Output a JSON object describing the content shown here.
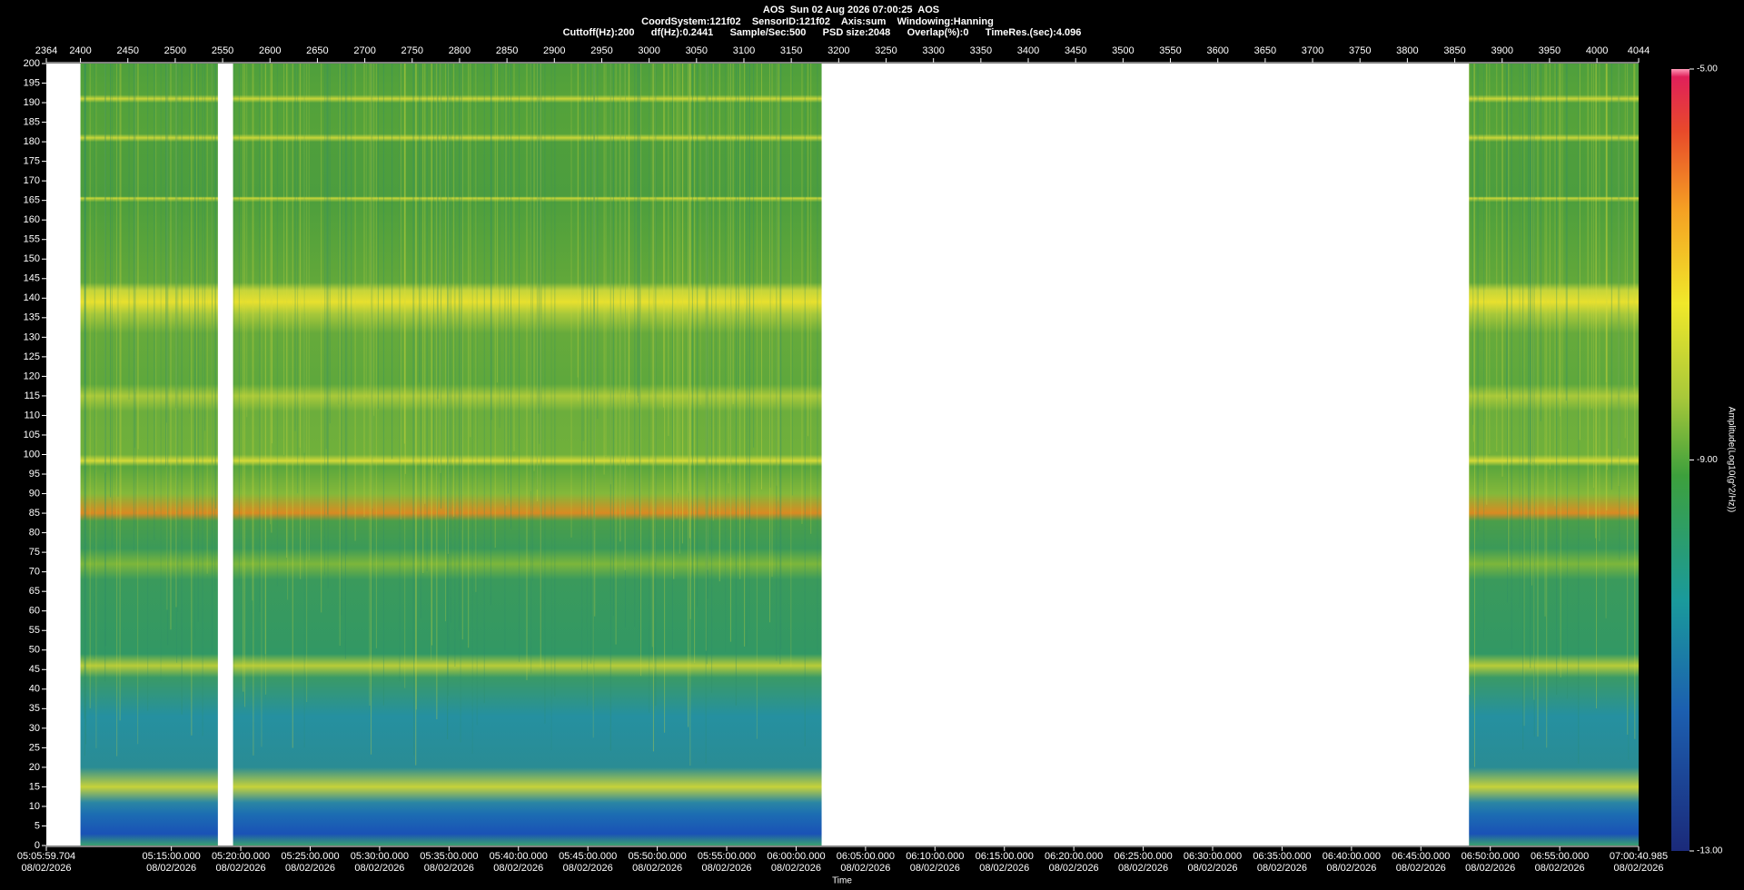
{
  "chart_data": {
    "type": "spectrogram",
    "title_lines": [
      "AOS  Sun 02 Aug 2026 07:00:25  AOS",
      "CoordSystem:121f02    SensorID:121f02    Axis:sum    Windowing:Hanning",
      "Cuttoff(Hz):200      df(Hz):0.2441      Sample/Sec:500      PSD size:2048      Overlap(%):0      TimeRes.(sec):4.096"
    ],
    "xlabel": "Time",
    "colorbar_label": "Amplitude(Log10(g^2/Hz))",
    "xlim": [
      2364,
      4044
    ],
    "xticks": [
      2364,
      2400,
      2450,
      2500,
      2550,
      2600,
      2650,
      2700,
      2750,
      2800,
      2850,
      2900,
      2950,
      3000,
      3050,
      3100,
      3150,
      3200,
      3250,
      3300,
      3350,
      3400,
      3450,
      3500,
      3550,
      3600,
      3650,
      3700,
      3750,
      3800,
      3850,
      3900,
      3950,
      4000,
      4044
    ],
    "ylim": [
      0,
      200
    ],
    "yticks": [
      0,
      5,
      10,
      15,
      20,
      25,
      30,
      35,
      40,
      45,
      50,
      55,
      60,
      65,
      70,
      75,
      80,
      85,
      90,
      95,
      100,
      105,
      110,
      115,
      120,
      125,
      130,
      135,
      140,
      145,
      150,
      155,
      160,
      165,
      170,
      175,
      180,
      185,
      190,
      195,
      200
    ],
    "time_ticks": [
      {
        "time": "05:05:59.704",
        "date": "08/02/2026"
      },
      {
        "time": "05:15:00.000",
        "date": "08/02/2026"
      },
      {
        "time": "05:20:00.000",
        "date": "08/02/2026"
      },
      {
        "time": "05:25:00.000",
        "date": "08/02/2026"
      },
      {
        "time": "05:30:00.000",
        "date": "08/02/2026"
      },
      {
        "time": "05:35:00.000",
        "date": "08/02/2026"
      },
      {
        "time": "05:40:00.000",
        "date": "08/02/2026"
      },
      {
        "time": "05:45:00.000",
        "date": "08/02/2026"
      },
      {
        "time": "05:50:00.000",
        "date": "08/02/2026"
      },
      {
        "time": "05:55:00.000",
        "date": "08/02/2026"
      },
      {
        "time": "06:00:00.000",
        "date": "08/02/2026"
      },
      {
        "time": "06:05:00.000",
        "date": "08/02/2026"
      },
      {
        "time": "06:10:00.000",
        "date": "08/02/2026"
      },
      {
        "time": "06:15:00.000",
        "date": "08/02/2026"
      },
      {
        "time": "06:20:00.000",
        "date": "08/02/2026"
      },
      {
        "time": "06:25:00.000",
        "date": "08/02/2026"
      },
      {
        "time": "06:30:00.000",
        "date": "08/02/2026"
      },
      {
        "time": "06:35:00.000",
        "date": "08/02/2026"
      },
      {
        "time": "06:40:00.000",
        "date": "08/02/2026"
      },
      {
        "time": "06:45:00.000",
        "date": "08/02/2026"
      },
      {
        "time": "06:50:00.000",
        "date": "08/02/2026"
      },
      {
        "time": "06:55:00.000",
        "date": "08/02/2026"
      },
      {
        "time": "07:00:40.985",
        "date": "08/02/2026"
      }
    ],
    "data_ranges": [
      [
        2400,
        2545
      ],
      [
        2561,
        3182
      ],
      [
        3865,
        4044
      ]
    ],
    "zlim": [
      -13,
      -5
    ],
    "zticks": [
      {
        "value": -13,
        "label": "-13.00"
      },
      {
        "value": -9,
        "label": "-9.00"
      },
      {
        "value": -5,
        "label": "-5.00"
      }
    ]
  }
}
